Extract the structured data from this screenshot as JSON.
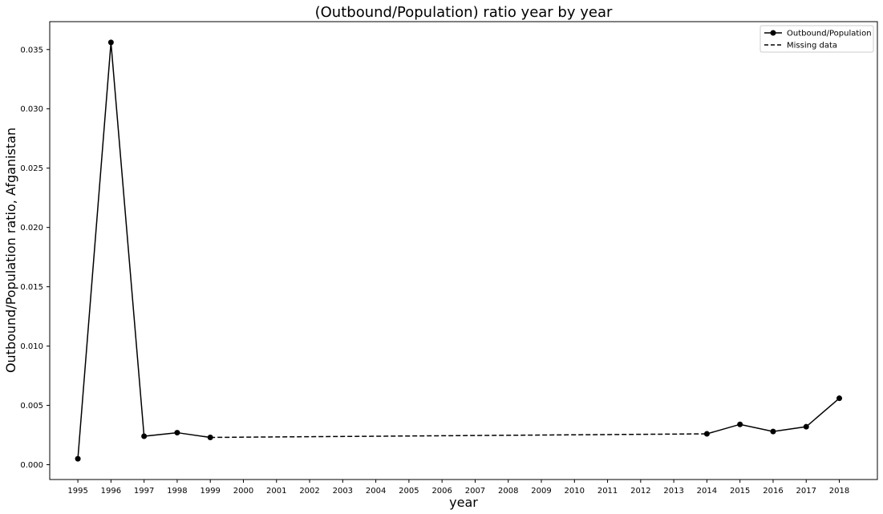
{
  "chart_data": {
    "type": "line",
    "title": "(Outbound/Population) ratio year by year",
    "xlabel": "year",
    "ylabel": "Outbound/Population ratio, Afganistan",
    "x_ticks": [
      "1995",
      "1996",
      "1997",
      "1998",
      "1999",
      "2000",
      "2001",
      "2002",
      "2003",
      "2004",
      "2005",
      "2006",
      "2007",
      "2008",
      "2009",
      "2010",
      "2011",
      "2012",
      "2013",
      "2014",
      "2015",
      "2016",
      "2017",
      "2018"
    ],
    "y_ticks": [
      0.0,
      0.005,
      0.01,
      0.015,
      0.02,
      0.025,
      0.03,
      0.035
    ],
    "y_tick_labels": [
      "0.000",
      "0.005",
      "0.010",
      "0.015",
      "0.020",
      "0.025",
      "0.030",
      "0.035"
    ],
    "xlim": [
      1994.15,
      2019.15
    ],
    "ylim": [
      -0.00125,
      0.03735
    ],
    "series": [
      {
        "name": "Outbound/Population",
        "style": "solid-with-markers",
        "color": "#000000",
        "points": [
          {
            "x": 1995,
            "y": 0.0005
          },
          {
            "x": 1996,
            "y": 0.0356
          },
          {
            "x": 1997,
            "y": 0.0024
          },
          {
            "x": 1998,
            "y": 0.0027
          },
          {
            "x": 1999,
            "y": 0.0023
          },
          {
            "x": 2014,
            "y": 0.0026
          },
          {
            "x": 2015,
            "y": 0.0034
          },
          {
            "x": 2016,
            "y": 0.0028
          },
          {
            "x": 2017,
            "y": 0.0032
          },
          {
            "x": 2018,
            "y": 0.0056
          }
        ]
      },
      {
        "name": "Missing data",
        "style": "dashed",
        "color": "#000000",
        "points": [
          {
            "x": 1999,
            "y": 0.0023
          },
          {
            "x": 2014,
            "y": 0.0026
          }
        ]
      }
    ],
    "legend_position": "top-right",
    "grid": false
  }
}
